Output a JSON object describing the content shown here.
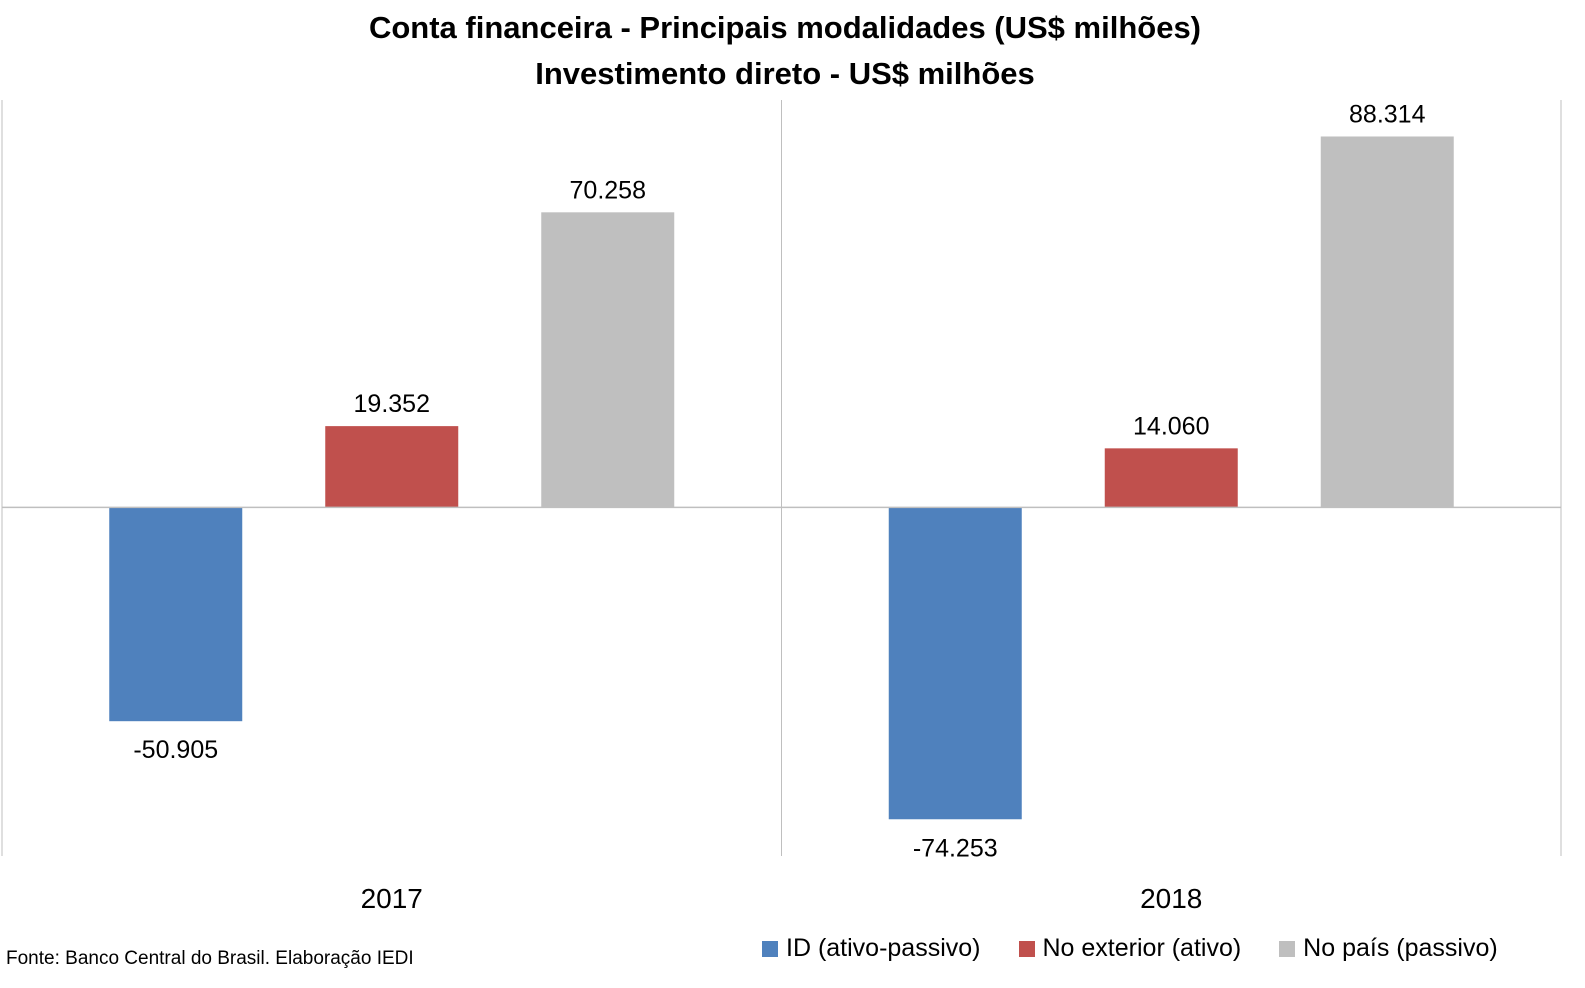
{
  "chart_data": {
    "type": "bar",
    "title": "Conta financeira - Principais modalidades (US$ milhões)",
    "subtitle": "Investimento direto - US$ milhões",
    "categories": [
      "2017",
      "2018"
    ],
    "series": [
      {
        "name": "ID (ativo-passivo)",
        "color": "#4f81bd",
        "values": [
          -50905,
          -74253
        ],
        "labels": [
          "-50.905",
          "-74.253"
        ]
      },
      {
        "name": "No exterior (ativo)",
        "color": "#c0504d",
        "values": [
          19352,
          14060
        ],
        "labels": [
          "19.352",
          "14.060"
        ]
      },
      {
        "name": "No país (passivo)",
        "color": "#bfbfbf",
        "values": [
          70258,
          88314
        ],
        "labels": [
          "70.258",
          "88.314"
        ]
      }
    ],
    "ylim": [
      -83000,
      97000
    ],
    "grid": false,
    "legend_position": "bottom-right",
    "xlabel": "",
    "ylabel": ""
  },
  "source": "Fonte: Banco Central do Brasil. Elaboração IEDI"
}
